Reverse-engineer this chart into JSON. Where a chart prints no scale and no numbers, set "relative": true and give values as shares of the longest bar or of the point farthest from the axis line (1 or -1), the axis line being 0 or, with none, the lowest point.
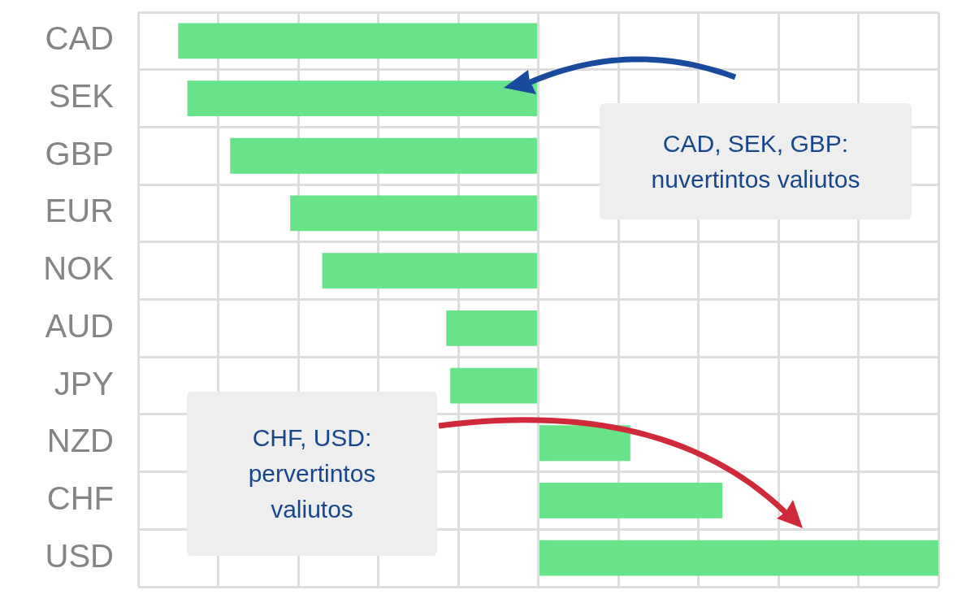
{
  "chart_data": {
    "type": "bar",
    "orientation": "horizontal",
    "relative": true,
    "grid": true,
    "categories": [
      "CAD",
      "SEK",
      "GBP",
      "EUR",
      "NOK",
      "AUD",
      "JPY",
      "NZD",
      "CHF",
      "USD"
    ],
    "values": [
      -0.9,
      -0.877,
      -0.77,
      -0.62,
      -0.54,
      -0.23,
      -0.22,
      0.23,
      0.46,
      1
    ],
    "color": "#67e389",
    "annotations": [
      "CAD, SEK, GBP: nuvertintos valiutos",
      "CHF, USD: pervertintos valiutos"
    ]
  }
}
